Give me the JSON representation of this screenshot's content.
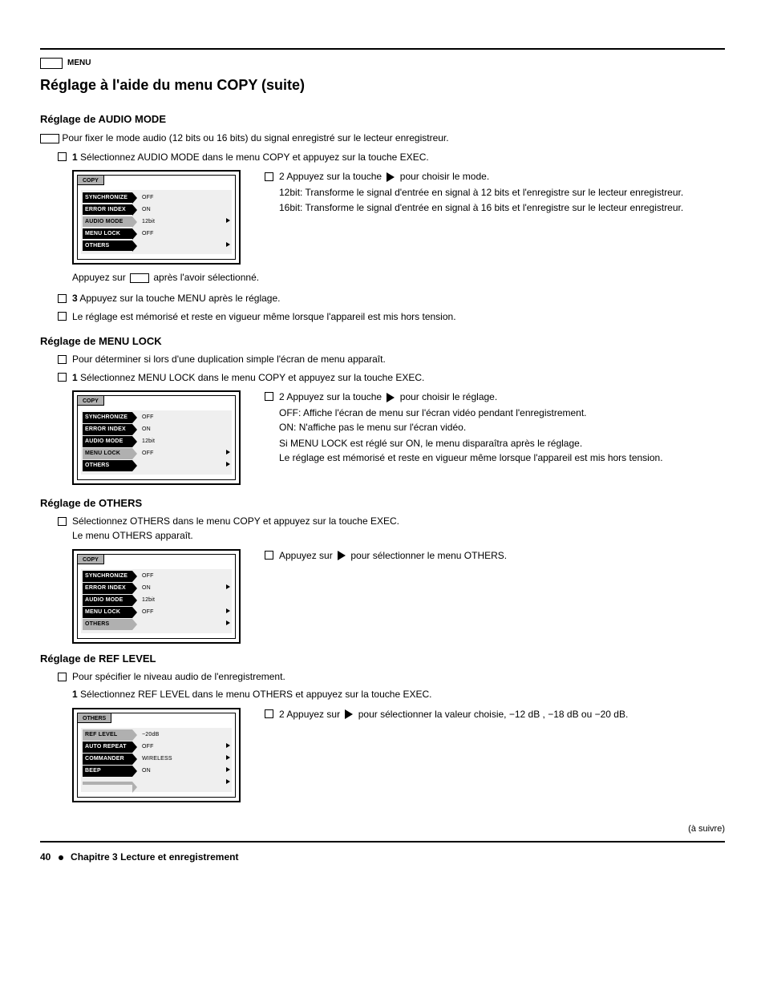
{
  "page": {
    "menu_label": "MENU",
    "heading": "Réglage à l'aide du menu COPY (suite)",
    "intro_heading": "Réglage de AUDIO MODE",
    "intro_text_1": "Pour fixer le mode audio (12 bits ou 16 bits) du signal enregistré sur le lecteur enregistreur.",
    "step1": "Sélectionnez AUDIO MODE dans le menu COPY et appuyez sur la touche EXEC.",
    "press_label": "Appuyez sur ",
    "press_after": " après l'avoir sélectionné.",
    "step2": "Appuyez sur la touche ",
    "step2_after_tri": " pour choisir le mode.",
    "step2_12bit": "12bit: Transforme le signal d'entrée en signal à 12 bits et l'enregistre sur le lecteur enregistreur.",
    "step2_16bit": "16bit: Transforme le signal d'entrée en signal à 16 bits et l'enregistre sur le lecteur enregistreur.",
    "press_menu": "Appuyez sur la touche MENU après le réglage.",
    "memorized": "Le réglage est mémorisé et reste en vigueur même lorsque l'appareil est mis hors tension.",
    "lock_heading": "Réglage de MENU LOCK",
    "lock_intro": "Pour déterminer si lors d'une duplication simple l'écran de menu apparaît.",
    "lock_step1": "Sélectionnez MENU LOCK dans le menu COPY et appuyez sur la touche EXEC.",
    "lock_step2": "Appuyez sur la touche ",
    "lock_step2_after": " pour choisir le réglage.",
    "lock_off": "OFF: Affiche l'écran de menu sur l'écran vidéo pendant l'enregistrement.",
    "lock_on": "ON: N'affiche pas le menu sur l'écran vidéo.",
    "lock_set": "Si MENU LOCK est réglé sur ON, le menu disparaîtra après le réglage.",
    "lock_mem": "Le réglage est mémorisé et reste en vigueur même lorsque l'appareil est mis hors tension.",
    "other_label": "Réglage de OTHERS",
    "other_step": "Sélectionnez OTHERS dans le menu COPY et appuyez sur la touche EXEC.",
    "other_note": "Le menu OTHERS apparaît.",
    "other_right": " pour sélectionner le menu OTHERS.",
    "ref_heading": "Réglage de REF LEVEL",
    "ref_intro": "Pour spécifier le niveau audio de l'enregistrement.",
    "ref_step": "Sélectionnez REF LEVEL dans le menu OTHERS et appuyez sur la touche EXEC.",
    "ref_right": " pour sélectionner la valeur choisie, −12 dB , −18 dB ou −20 dB.",
    "continued": "(à suivre)",
    "footer_pg": "40",
    "footer_chap": "Chapitre 3  Lecture et enregistrement"
  },
  "menu1": {
    "tab": "COPY",
    "rows": [
      {
        "label": "SYNCHRONIZE",
        "val": "OFF",
        "cls": "black",
        "arrow": false,
        "extra": ""
      },
      {
        "label": "ERROR INDEX",
        "val": "ON",
        "cls": "black",
        "arrow": false,
        "extra": ""
      },
      {
        "label": "AUDIO MODE",
        "val": "12bit",
        "cls": "sel",
        "arrow": true,
        "extra": ""
      },
      {
        "label": "MENU LOCK",
        "val": "OFF",
        "cls": "black",
        "arrow": false,
        "extra": ""
      },
      {
        "label": "OTHERS",
        "val": "",
        "cls": "black",
        "arrow": true,
        "extra": ""
      }
    ]
  },
  "menu2": {
    "tab": "COPY",
    "rows": [
      {
        "label": "SYNCHRONIZE",
        "val": "OFF",
        "cls": "black",
        "arrow": false
      },
      {
        "label": "ERROR INDEX",
        "val": "ON",
        "cls": "black",
        "arrow": false
      },
      {
        "label": "AUDIO MODE",
        "val": "12bit",
        "cls": "black",
        "arrow": false
      },
      {
        "label": "MENU LOCK",
        "val": "OFF",
        "cls": "sel",
        "arrow": true
      },
      {
        "label": "OTHERS",
        "val": "",
        "cls": "black",
        "arrow": true
      }
    ]
  },
  "menu3": {
    "tab": "COPY",
    "rows": [
      {
        "label": "SYNCHRONIZE",
        "val": "OFF",
        "cls": "black",
        "arrow": false
      },
      {
        "label": "ERROR INDEX",
        "val": "ON",
        "cls": "black",
        "arrow": true
      },
      {
        "label": "AUDIO MODE",
        "val": "12bit",
        "cls": "black",
        "arrow": false
      },
      {
        "label": "MENU LOCK",
        "val": "OFF",
        "cls": "black",
        "arrow": true
      },
      {
        "label": "OTHERS",
        "val": "",
        "cls": "sel",
        "arrow": true
      }
    ]
  },
  "menu4": {
    "tab": "OTHERS",
    "rows": [
      {
        "label": "REF LEVEL",
        "val": "−20dB",
        "cls": "sel",
        "arrow": false
      },
      {
        "label": "AUTO REPEAT",
        "val": "OFF",
        "cls": "black",
        "arrow": true
      },
      {
        "label": "COMMANDER",
        "val": "WIRELESS",
        "cls": "black",
        "arrow": true
      },
      {
        "label": "BEEP",
        "val": "ON",
        "cls": "black",
        "arrow": true
      },
      {
        "label": "",
        "val": "",
        "cls": "sel",
        "arrow": true
      }
    ]
  }
}
